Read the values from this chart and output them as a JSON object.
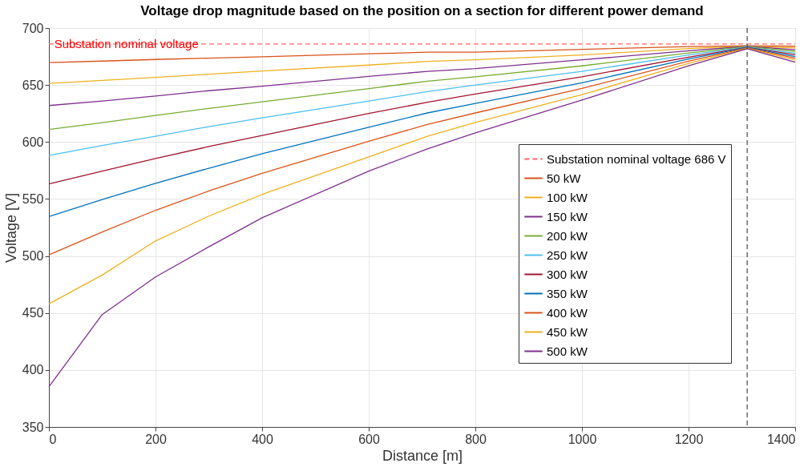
{
  "chart_data": {
    "type": "line",
    "title": "Voltage drop magnitude based on the position on a section for different power demand",
    "xlabel": "Distance [m]",
    "ylabel": "Voltage [V]",
    "x": [
      0,
      100,
      200,
      300,
      400,
      600,
      710,
      800,
      1000,
      1200,
      1310,
      1400
    ],
    "xlim": [
      0,
      1400
    ],
    "xticks": [
      0,
      200,
      400,
      600,
      800,
      1000,
      1200,
      1400
    ],
    "ylim": [
      350,
      700
    ],
    "yticks": [
      350,
      400,
      450,
      500,
      550,
      600,
      650,
      700
    ],
    "grid": true,
    "legend": "bottom right",
    "series": [
      {
        "name": "Substation nominal voltage 686 V",
        "color": "#ff6666",
        "line_style": "dashed",
        "x": [
          0,
          1400
        ],
        "values": [
          686,
          686
        ]
      },
      {
        "name": "50 kW",
        "color": "#d95319",
        "values": [
          669.7,
          671,
          672.4,
          673.6,
          674.8,
          677.4,
          678.8,
          678.8,
          681.3,
          683.7,
          684.5,
          684
        ]
      },
      {
        "name": "100 kW",
        "color": "#edb120",
        "values": [
          651.4,
          654,
          656.7,
          659.5,
          662.3,
          667.5,
          670.7,
          672.1,
          676.4,
          682,
          684.2,
          682.5
        ]
      },
      {
        "name": "150 kW",
        "color": "#7e2f8e",
        "values": [
          632,
          636,
          640.4,
          645,
          649,
          657.5,
          662,
          664.4,
          672.1,
          680,
          684,
          681
        ]
      },
      {
        "name": "200 kW",
        "color": "#77ac30",
        "values": [
          611,
          617,
          623.3,
          629.5,
          635.3,
          646.9,
          653.4,
          657.2,
          666.8,
          678.1,
          683.7,
          679.5
        ]
      },
      {
        "name": "250 kW",
        "color": "#4dbeee",
        "values": [
          588.2,
          597,
          605,
          613.5,
          621.2,
          636,
          644.2,
          650,
          662,
          676.4,
          683.4,
          678
        ]
      },
      {
        "name": "300 kW",
        "color": "#a2142f",
        "values": [
          563.2,
          574.5,
          585.6,
          596,
          605.8,
          625,
          634.9,
          642.1,
          657.2,
          674.5,
          683.1,
          676.5
        ]
      },
      {
        "name": "350 kW",
        "color": "#0072bd",
        "values": [
          534.6,
          549.5,
          563.7,
          577,
          589.7,
          613,
          625.5,
          633.9,
          652,
          672.8,
          682.8,
          675
        ]
      },
      {
        "name": "400 kW",
        "color": "#d95319",
        "values": [
          501,
          521,
          540.1,
          557,
          572.6,
          600.7,
          615.4,
          625.5,
          647.1,
          670.9,
          682.5,
          673.5
        ]
      },
      {
        "name": "450 kW",
        "color": "#edb120",
        "values": [
          458,
          483.3,
          513.2,
          535,
          554,
          587,
          605,
          617.1,
          641.6,
          669,
          682.2,
          672
        ]
      },
      {
        "name": "500 kW",
        "color": "#7e2f8e",
        "values": [
          385.2,
          448.6,
          481.6,
          508,
          533.5,
          574.5,
          594,
          608,
          636.8,
          666.8,
          681.8,
          670
        ]
      }
    ],
    "ref_lines": [
      {
        "axis": "x",
        "value": 1310,
        "color": "#555555",
        "line_style": "dashed"
      }
    ],
    "annotations": [
      {
        "text": "Substation nominal voltage",
        "x": 10,
        "y": 686
      }
    ]
  }
}
